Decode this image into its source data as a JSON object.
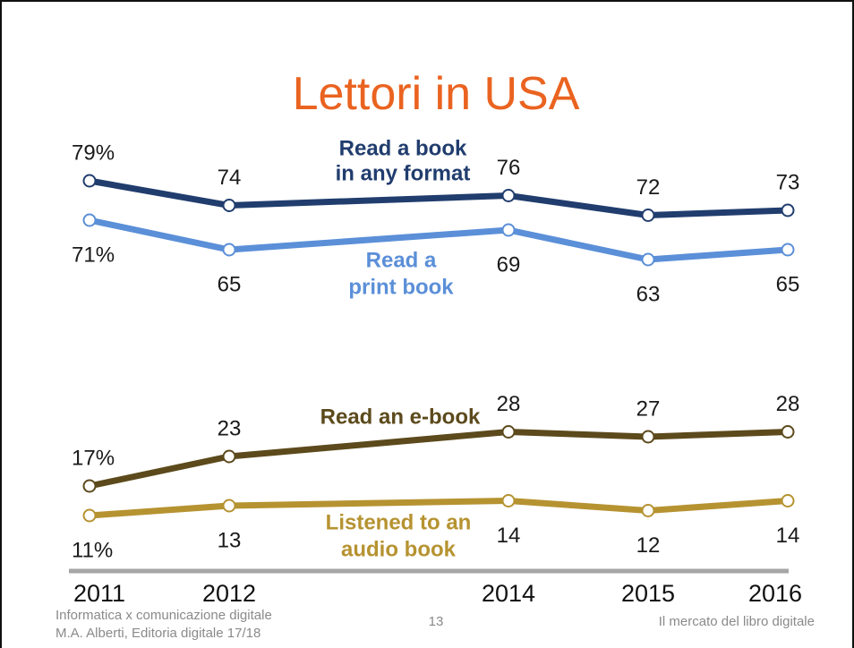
{
  "slide": {
    "colors": {
      "title": "#EA6320",
      "footer_text": "#8A8A8A",
      "axis_line": "#A6A6A6"
    },
    "footer": {
      "left_line1": "Informatica x comunicazione digitale",
      "left_line2": "M.A. Alberti, Editoria digitale 17/18",
      "page_number": "13",
      "right_text": "Il mercato del libro digitale"
    }
  },
  "chart_data": {
    "type": "line",
    "title": "Lettori in USA",
    "x": [
      2011,
      2012,
      2014,
      2015,
      2016
    ],
    "xlim": [
      2011,
      2016
    ],
    "ylim": [
      0,
      80
    ],
    "grid": false,
    "legend": "inline",
    "series": [
      {
        "name_lines": [
          "Read a book",
          "in any format"
        ],
        "values": [
          79,
          74,
          76,
          72,
          73
        ],
        "data_labels": [
          "79%",
          "74",
          "76",
          "72",
          "73"
        ],
        "color": "#213D6E"
      },
      {
        "name_lines": [
          "Read a",
          "print book"
        ],
        "values": [
          71,
          65,
          69,
          63,
          65
        ],
        "data_labels": [
          "71%",
          "65",
          "69",
          "63",
          "65"
        ],
        "color": "#5B8FD8"
      },
      {
        "name_lines": [
          "Read an e-book"
        ],
        "values": [
          17,
          23,
          28,
          27,
          28
        ],
        "data_labels": [
          "17%",
          "23",
          "28",
          "27",
          "28"
        ],
        "color": "#5C4A1C"
      },
      {
        "name_lines": [
          "Listened to an",
          "audio book"
        ],
        "values": [
          11,
          13,
          14,
          12,
          14
        ],
        "data_labels": [
          "11%",
          "13",
          "14",
          "12",
          "14"
        ],
        "color": "#B69331"
      }
    ]
  }
}
